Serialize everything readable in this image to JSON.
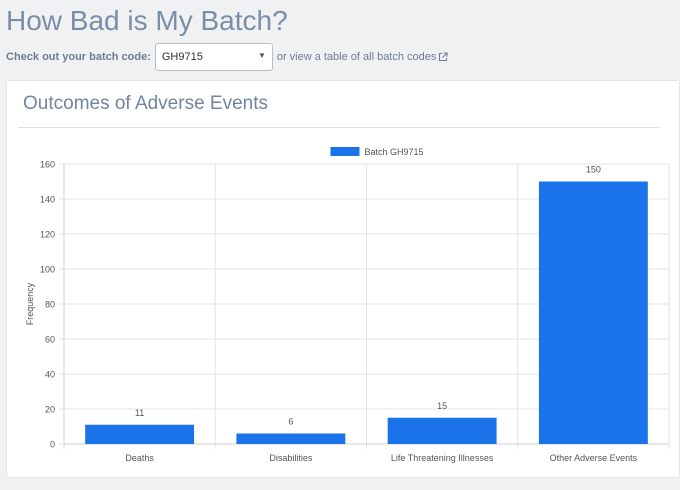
{
  "header": {
    "title": "How Bad is My Batch?"
  },
  "batch_selector": {
    "label": "Check out your batch code:",
    "selected": "GH9715",
    "caret": "▼",
    "alt_prefix": "or",
    "alt_link": "view a table of all batch codes"
  },
  "card": {
    "title": "Outcomes of Adverse Events"
  },
  "chart_data": {
    "type": "bar",
    "title": "",
    "xlabel": "",
    "ylabel": "Frequency",
    "categories": [
      "Deaths",
      "Disabilities",
      "Life Threatening Illnesses",
      "Other Adverse Events"
    ],
    "series": [
      {
        "name": "Batch GH9715",
        "values": [
          11,
          6,
          15,
          150
        ],
        "color": "#1a73e8"
      }
    ],
    "data_labels": [
      "11",
      "6",
      "15",
      "150"
    ],
    "ylim": [
      0,
      160
    ],
    "yticks": [
      0,
      20,
      40,
      60,
      80,
      100,
      120,
      140,
      160
    ],
    "grid": true,
    "legend_position": "top-center"
  }
}
